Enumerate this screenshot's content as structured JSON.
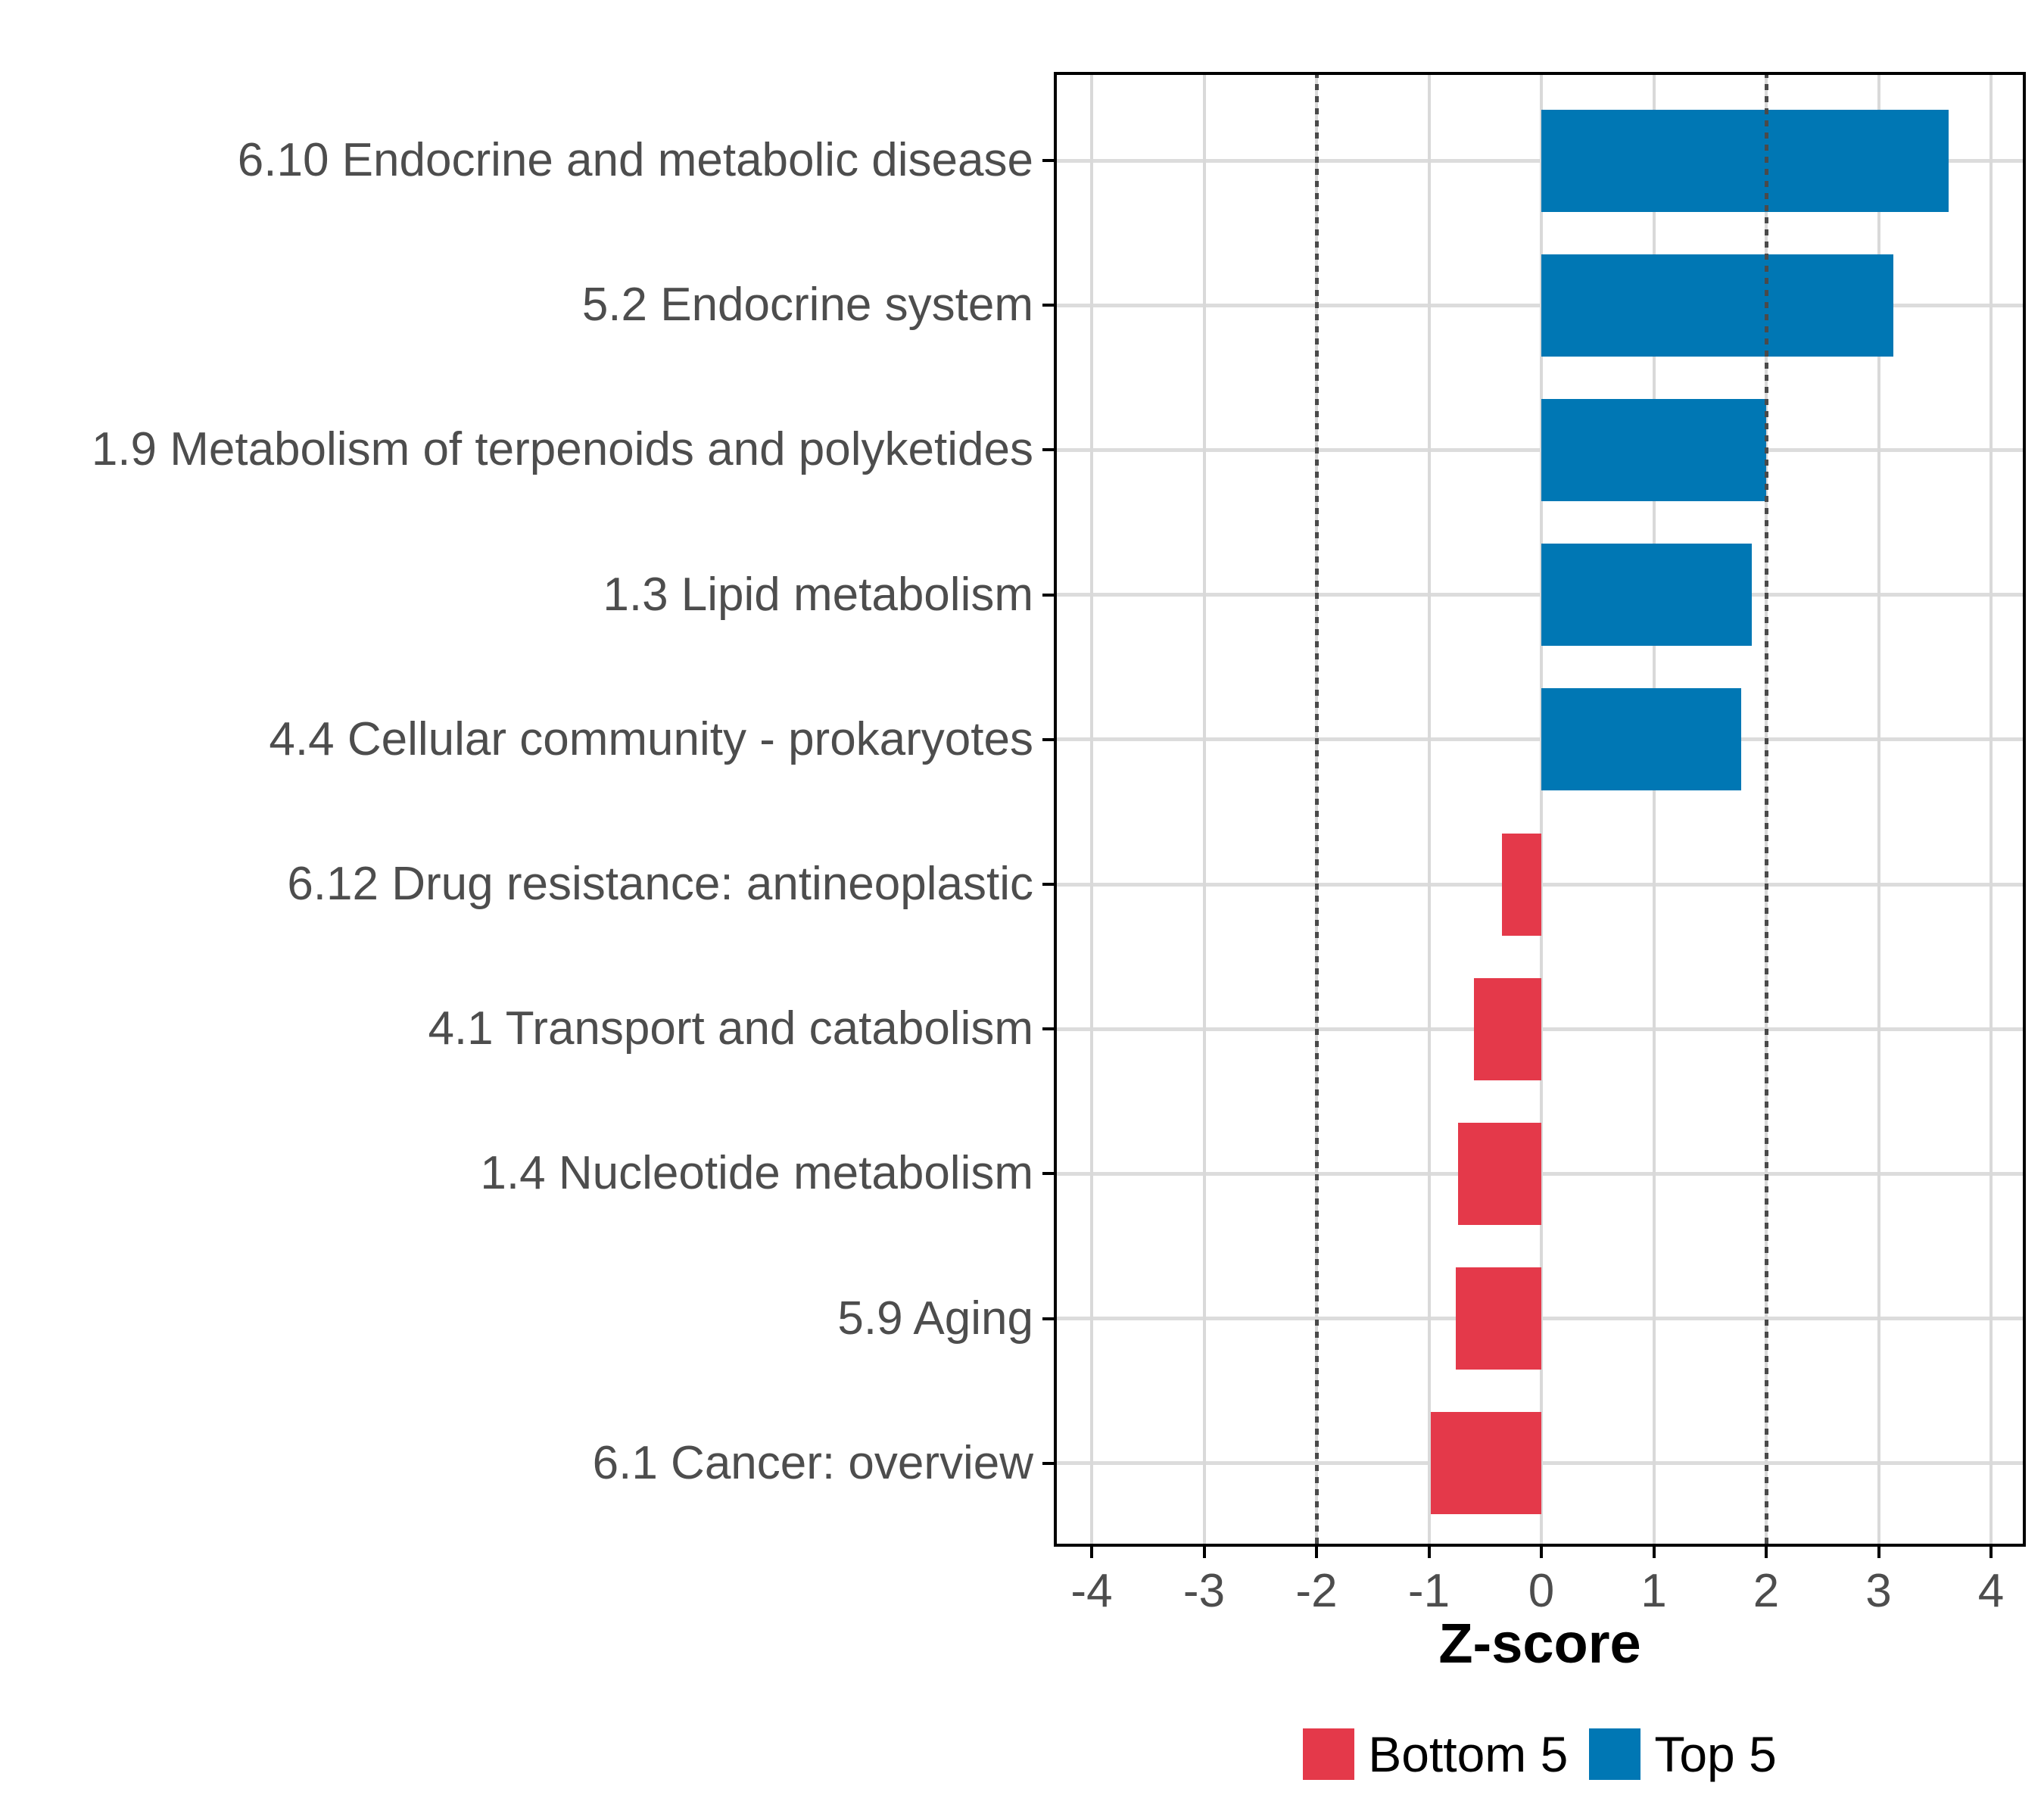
{
  "chart_data": {
    "type": "bar",
    "orientation": "horizontal",
    "xlabel": "Z-score",
    "ylabel": "",
    "xlim": [
      -4.33,
      4.31
    ],
    "x_ticks": [
      -4,
      -3,
      -2,
      -1,
      0,
      1,
      2,
      3,
      4
    ],
    "reference_lines_x": [
      -2,
      2
    ],
    "grid": "major vertical lines at integers; horizontal line at each category center",
    "legend_position": "bottom",
    "categories": [
      "6.10 Endocrine and metabolic disease",
      "5.2 Endocrine system",
      "1.9 Metabolism of terpenoids and polyketides",
      "1.3 Lipid metabolism",
      "4.4 Cellular community - prokaryotes",
      "6.12 Drug resistance: antineoplastic",
      "4.1 Transport and catabolism",
      "1.4 Nucleotide metabolism",
      "5.9 Aging",
      "6.1 Cancer: overview"
    ],
    "values": [
      3.62,
      3.13,
      2.0,
      1.87,
      1.78,
      -0.35,
      -0.6,
      -0.74,
      -0.76,
      -0.98
    ],
    "groups": [
      "Top 5",
      "Top 5",
      "Top 5",
      "Top 5",
      "Top 5",
      "Bottom 5",
      "Bottom 5",
      "Bottom 5",
      "Bottom 5",
      "Bottom 5"
    ],
    "legend": [
      {
        "label": "Bottom 5",
        "color": "#e4394a"
      },
      {
        "label": "Top 5",
        "color": "#0077b4"
      }
    ]
  },
  "colors": {
    "bar_positive": "#0077b4",
    "bar_negative": "#e4394a",
    "grid": "#d9d9d9",
    "reference_line": "#4a4a4a",
    "axis_text": "#4d4d4d",
    "axis_title": "#000000",
    "panel_border": "#000000",
    "background": "#ffffff"
  }
}
